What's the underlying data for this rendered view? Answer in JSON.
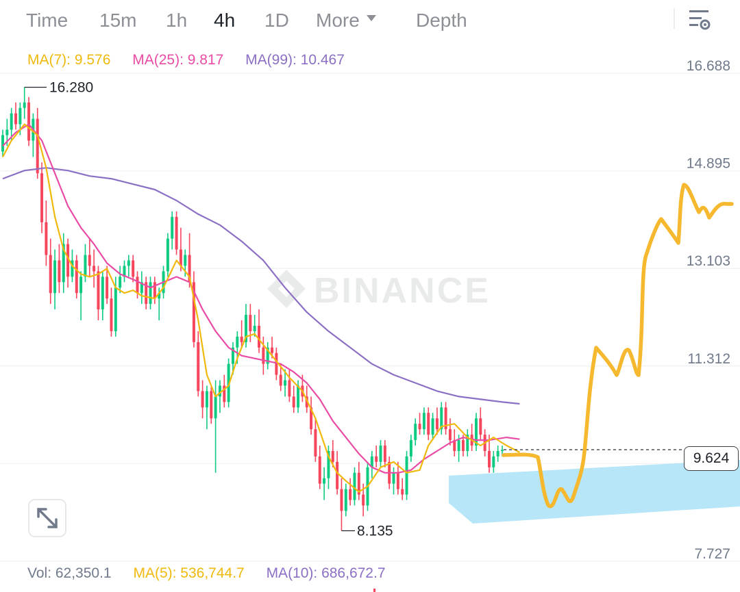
{
  "tabs": [
    {
      "label": "Time",
      "active": false
    },
    {
      "label": "15m",
      "active": false
    },
    {
      "label": "1h",
      "active": false
    },
    {
      "label": "4h",
      "active": true
    },
    {
      "label": "1D",
      "active": false
    },
    {
      "label": "More",
      "active": false
    },
    {
      "label": "Depth",
      "active": false
    }
  ],
  "icons": {
    "settings": "chart-settings-icon",
    "more_caret": "caret-down-icon",
    "expand": "expand-arrows-icon"
  },
  "ma_legend": [
    {
      "label": "MA(7): 9.576",
      "color": "#f0b90b"
    },
    {
      "label": "MA(25): 9.817",
      "color": "#e94ba5"
    },
    {
      "label": "MA(99): 10.467",
      "color": "#8b6fc4"
    }
  ],
  "volume_legend": [
    {
      "label": "Vol: 62,350.1",
      "color": "#707a8a"
    },
    {
      "label": "MA(5): 536,744.7",
      "color": "#f0b90b"
    },
    {
      "label": "MA(10): 686,672.7",
      "color": "#8b6fc4"
    }
  ],
  "watermark": "BINANCE",
  "current_price": "9.624",
  "colors": {
    "up": "#0ecb81",
    "down": "#f6465d",
    "ma7": "#f0b90b",
    "ma25": "#e94ba5",
    "ma99": "#8b6fc4",
    "drawing": "#f5b82e",
    "zone": "#aee3f7"
  },
  "chart_data": {
    "type": "line",
    "description_hint": "4h candlestick chart with moving averages and hand-drawn projection",
    "price_axis": {
      "ticks": [
        16.688,
        14.895,
        13.103,
        11.312,
        9.52,
        7.727
      ],
      "tick_labels": [
        "16.688",
        "14.895",
        "13.103",
        "11.312",
        "",
        "7.727"
      ],
      "ylim": [
        7.3,
        17.3
      ]
    },
    "high_marker": {
      "label": "16.280",
      "value": 16.28
    },
    "low_marker": {
      "label": "8.135",
      "value": 8.135
    },
    "current_price": 9.624,
    "candles": [
      [
        15.1,
        15.5,
        15.0,
        15.4
      ],
      [
        15.4,
        15.7,
        15.2,
        15.5
      ],
      [
        15.5,
        15.9,
        15.3,
        15.8
      ],
      [
        15.8,
        16.0,
        15.5,
        15.6
      ],
      [
        15.6,
        16.0,
        15.4,
        15.9
      ],
      [
        15.9,
        16.28,
        15.7,
        16.0
      ],
      [
        16.0,
        16.1,
        15.2,
        15.3
      ],
      [
        15.3,
        15.8,
        15.0,
        15.7
      ],
      [
        15.7,
        15.9,
        14.6,
        14.7
      ],
      [
        14.7,
        14.9,
        13.6,
        13.8
      ],
      [
        13.8,
        14.2,
        13.0,
        13.2
      ],
      [
        13.2,
        13.5,
        12.3,
        12.5
      ],
      [
        12.5,
        13.3,
        12.2,
        13.1
      ],
      [
        13.1,
        13.4,
        12.5,
        12.7
      ],
      [
        12.7,
        13.6,
        12.5,
        13.4
      ],
      [
        13.4,
        13.5,
        12.6,
        12.8
      ],
      [
        12.8,
        13.3,
        12.7,
        13.1
      ],
      [
        13.1,
        13.2,
        12.4,
        12.5
      ],
      [
        12.5,
        12.9,
        12.0,
        12.8
      ],
      [
        12.8,
        13.4,
        12.7,
        13.2
      ],
      [
        13.2,
        13.5,
        12.8,
        13.0
      ],
      [
        13.0,
        13.3,
        12.6,
        12.9
      ],
      [
        12.9,
        13.0,
        12.0,
        12.2
      ],
      [
        12.2,
        12.9,
        12.0,
        12.8
      ],
      [
        12.8,
        13.0,
        12.3,
        12.4
      ],
      [
        12.4,
        12.6,
        11.7,
        11.8
      ],
      [
        11.8,
        12.8,
        11.7,
        12.6
      ],
      [
        12.6,
        13.0,
        12.5,
        12.8
      ],
      [
        12.8,
        13.1,
        12.7,
        13.0
      ],
      [
        13.0,
        13.2,
        12.8,
        13.1
      ],
      [
        13.1,
        13.2,
        12.7,
        12.8
      ],
      [
        12.8,
        12.9,
        12.4,
        12.5
      ],
      [
        12.5,
        12.9,
        12.3,
        12.7
      ],
      [
        12.7,
        12.8,
        12.2,
        12.3
      ],
      [
        12.3,
        12.8,
        12.2,
        12.7
      ],
      [
        12.7,
        12.8,
        12.3,
        12.4
      ],
      [
        12.4,
        12.6,
        12.0,
        12.5
      ],
      [
        12.5,
        13.0,
        12.4,
        12.9
      ],
      [
        12.9,
        13.6,
        12.8,
        13.5
      ],
      [
        13.5,
        14.0,
        13.3,
        13.9
      ],
      [
        13.9,
        14.0,
        13.2,
        13.3
      ],
      [
        13.3,
        13.7,
        12.9,
        13.0
      ],
      [
        13.0,
        13.3,
        12.8,
        13.2
      ],
      [
        13.2,
        13.6,
        12.6,
        12.7
      ],
      [
        12.7,
        12.9,
        11.5,
        11.6
      ],
      [
        11.6,
        11.8,
        10.6,
        10.7
      ],
      [
        10.7,
        10.9,
        10.2,
        10.4
      ],
      [
        10.4,
        10.8,
        10.0,
        10.7
      ],
      [
        10.7,
        10.8,
        10.1,
        10.2
      ],
      [
        10.2,
        10.9,
        9.2,
        10.6
      ],
      [
        10.6,
        10.9,
        10.3,
        10.8
      ],
      [
        10.8,
        11.0,
        10.4,
        10.5
      ],
      [
        10.5,
        11.3,
        10.4,
        11.2
      ],
      [
        11.2,
        11.6,
        11.0,
        11.5
      ],
      [
        11.5,
        11.8,
        11.2,
        11.7
      ],
      [
        11.7,
        12.0,
        11.5,
        11.6
      ],
      [
        11.6,
        12.3,
        11.5,
        12.1
      ],
      [
        12.1,
        12.3,
        11.6,
        11.8
      ],
      [
        11.8,
        12.1,
        11.7,
        11.9
      ],
      [
        11.9,
        12.2,
        11.4,
        11.5
      ],
      [
        11.5,
        11.7,
        11.0,
        11.2
      ],
      [
        11.2,
        11.6,
        11.1,
        11.5
      ],
      [
        11.5,
        11.7,
        11.3,
        11.4
      ],
      [
        11.4,
        11.5,
        10.9,
        11.0
      ],
      [
        11.0,
        11.2,
        10.7,
        10.8
      ],
      [
        10.8,
        11.1,
        10.6,
        10.9
      ],
      [
        10.9,
        11.1,
        10.5,
        10.6
      ],
      [
        10.6,
        10.8,
        10.3,
        10.4
      ],
      [
        10.4,
        10.9,
        10.3,
        10.8
      ],
      [
        10.8,
        11.0,
        10.5,
        10.6
      ],
      [
        10.6,
        10.8,
        10.3,
        10.4
      ],
      [
        10.4,
        10.6,
        9.9,
        10.0
      ],
      [
        10.0,
        10.2,
        9.4,
        9.5
      ],
      [
        9.5,
        9.7,
        8.9,
        9.0
      ],
      [
        9.0,
        9.3,
        8.7,
        9.1
      ],
      [
        9.1,
        9.7,
        8.9,
        9.6
      ],
      [
        9.6,
        9.8,
        9.3,
        9.4
      ],
      [
        9.4,
        9.6,
        8.8,
        8.9
      ],
      [
        8.9,
        9.1,
        8.135,
        8.5
      ],
      [
        8.5,
        9.0,
        8.4,
        8.9
      ],
      [
        8.9,
        9.1,
        8.6,
        8.7
      ],
      [
        8.7,
        9.3,
        8.6,
        9.2
      ],
      [
        9.2,
        9.4,
        8.7,
        8.8
      ],
      [
        8.8,
        9.0,
        8.4,
        8.6
      ],
      [
        8.6,
        9.4,
        8.5,
        9.3
      ],
      [
        9.3,
        9.6,
        9.1,
        9.5
      ],
      [
        9.5,
        9.7,
        9.3,
        9.4
      ],
      [
        9.4,
        9.8,
        9.3,
        9.7
      ],
      [
        9.7,
        9.8,
        9.3,
        9.4
      ],
      [
        9.4,
        9.5,
        8.9,
        9.0
      ],
      [
        9.0,
        9.3,
        8.8,
        9.2
      ],
      [
        9.2,
        9.4,
        8.8,
        8.9
      ],
      [
        8.9,
        9.1,
        8.7,
        8.8
      ],
      [
        8.8,
        9.6,
        8.7,
        9.5
      ],
      [
        9.5,
        9.9,
        9.4,
        9.8
      ],
      [
        9.8,
        10.2,
        9.7,
        10.1
      ],
      [
        10.1,
        10.3,
        9.9,
        10.0
      ],
      [
        10.0,
        10.4,
        9.9,
        10.3
      ],
      [
        10.3,
        10.4,
        9.8,
        9.9
      ],
      [
        9.9,
        10.3,
        9.8,
        10.2
      ],
      [
        10.2,
        10.4,
        9.9,
        10.0
      ],
      [
        10.0,
        10.5,
        9.9,
        10.4
      ],
      [
        10.4,
        10.5,
        9.9,
        10.0
      ],
      [
        10.0,
        10.2,
        9.7,
        9.8
      ],
      [
        9.8,
        10.0,
        9.5,
        9.6
      ],
      [
        9.6,
        9.9,
        9.4,
        9.8
      ],
      [
        9.8,
        9.9,
        9.5,
        9.6
      ],
      [
        9.6,
        10.0,
        9.5,
        9.9
      ],
      [
        9.9,
        10.1,
        9.6,
        9.7
      ],
      [
        9.7,
        10.3,
        9.6,
        10.2
      ],
      [
        10.2,
        10.4,
        9.8,
        9.9
      ],
      [
        9.9,
        10.0,
        9.5,
        9.6
      ],
      [
        9.6,
        9.9,
        9.2,
        9.3
      ],
      [
        9.3,
        9.6,
        9.2,
        9.5
      ],
      [
        9.5,
        9.7,
        9.4,
        9.6
      ],
      [
        9.6,
        9.7,
        9.5,
        9.62
      ]
    ],
    "ma7": [
      [
        0,
        15.0
      ],
      [
        2,
        15.3
      ],
      [
        5,
        15.6
      ],
      [
        8,
        15.4
      ],
      [
        10,
        14.8
      ],
      [
        12,
        13.9
      ],
      [
        14,
        13.3
      ],
      [
        16,
        13.0
      ],
      [
        18,
        12.85
      ],
      [
        20,
        12.8
      ],
      [
        22,
        12.85
      ],
      [
        24,
        12.95
      ],
      [
        26,
        12.6
      ],
      [
        28,
        12.5
      ],
      [
        30,
        12.55
      ],
      [
        32,
        12.45
      ],
      [
        35,
        12.4
      ],
      [
        37,
        12.6
      ],
      [
        40,
        13.1
      ],
      [
        43,
        12.8
      ],
      [
        45,
        12.0
      ],
      [
        47,
        11.0
      ],
      [
        49,
        10.6
      ],
      [
        52,
        10.8
      ],
      [
        54,
        11.3
      ],
      [
        56,
        11.7
      ],
      [
        58,
        11.75
      ],
      [
        60,
        11.55
      ],
      [
        63,
        11.25
      ],
      [
        66,
        10.95
      ],
      [
        69,
        10.7
      ],
      [
        72,
        10.2
      ],
      [
        75,
        9.5
      ],
      [
        77,
        9.2
      ],
      [
        79,
        9.05
      ],
      [
        82,
        8.85
      ],
      [
        84,
        8.95
      ],
      [
        87,
        9.3
      ],
      [
        90,
        9.4
      ],
      [
        93,
        9.2
      ],
      [
        96,
        9.25
      ],
      [
        98,
        9.7
      ],
      [
        101,
        10.05
      ],
      [
        104,
        10.1
      ],
      [
        107,
        9.85
      ],
      [
        110,
        9.7
      ],
      [
        113,
        9.85
      ],
      [
        116,
        9.7
      ],
      [
        119,
        9.576
      ]
    ],
    "ma25": [
      [
        0,
        15.2
      ],
      [
        3,
        15.45
      ],
      [
        6,
        15.6
      ],
      [
        9,
        15.3
      ],
      [
        12,
        14.7
      ],
      [
        15,
        14.1
      ],
      [
        18,
        13.7
      ],
      [
        21,
        13.4
      ],
      [
        24,
        13.05
      ],
      [
        27,
        12.85
      ],
      [
        30,
        12.75
      ],
      [
        34,
        12.6
      ],
      [
        37,
        12.7
      ],
      [
        40,
        12.8
      ],
      [
        43,
        12.7
      ],
      [
        46,
        12.2
      ],
      [
        49,
        11.8
      ],
      [
        52,
        11.5
      ],
      [
        55,
        11.35
      ],
      [
        58,
        11.3
      ],
      [
        61,
        11.25
      ],
      [
        64,
        11.2
      ],
      [
        67,
        11.05
      ],
      [
        70,
        10.85
      ],
      [
        73,
        10.55
      ],
      [
        76,
        10.15
      ],
      [
        79,
        9.85
      ],
      [
        82,
        9.55
      ],
      [
        85,
        9.3
      ],
      [
        88,
        9.2
      ],
      [
        91,
        9.2
      ],
      [
        94,
        9.25
      ],
      [
        97,
        9.45
      ],
      [
        100,
        9.6
      ],
      [
        103,
        9.75
      ],
      [
        106,
        9.85
      ],
      [
        109,
        9.8
      ],
      [
        112,
        9.8
      ],
      [
        116,
        9.85
      ],
      [
        119,
        9.817
      ]
    ],
    "ma99": [
      [
        0,
        14.6
      ],
      [
        5,
        14.75
      ],
      [
        10,
        14.8
      ],
      [
        15,
        14.75
      ],
      [
        20,
        14.65
      ],
      [
        25,
        14.6
      ],
      [
        30,
        14.5
      ],
      [
        35,
        14.4
      ],
      [
        40,
        14.2
      ],
      [
        45,
        13.95
      ],
      [
        50,
        13.75
      ],
      [
        55,
        13.45
      ],
      [
        60,
        13.1
      ],
      [
        65,
        12.6
      ],
      [
        70,
        12.15
      ],
      [
        75,
        11.8
      ],
      [
        80,
        11.5
      ],
      [
        85,
        11.2
      ],
      [
        90,
        11.0
      ],
      [
        95,
        10.85
      ],
      [
        100,
        10.7
      ],
      [
        105,
        10.6
      ],
      [
        110,
        10.55
      ],
      [
        115,
        10.5
      ],
      [
        119,
        10.467
      ]
    ]
  }
}
